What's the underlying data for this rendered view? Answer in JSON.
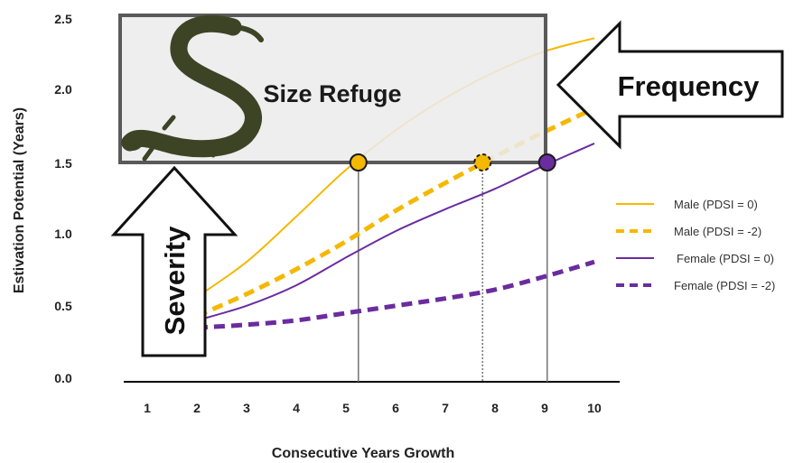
{
  "chart_data": {
    "type": "line",
    "xlabel": "Consecutive Years Growth",
    "ylabel": "Estivation Potential (Years)",
    "x_ticks": [
      "1",
      "2",
      "3",
      "4",
      "5",
      "6",
      "7",
      "8",
      "9",
      "10"
    ],
    "y_ticks": [
      "0.0",
      "0.5",
      "1.0",
      "1.5",
      "2.0",
      "2.5"
    ],
    "xlim": [
      0.6,
      10.4
    ],
    "ylim": [
      0,
      2.5
    ],
    "threshold": 1.5,
    "series": [
      {
        "name": "Male (PDSI = 0)",
        "color": "#f5b800",
        "style": "solid",
        "x": [
          2,
          3,
          4,
          5,
          6,
          7,
          8,
          9,
          10
        ],
        "y": [
          0.58,
          0.82,
          1.13,
          1.45,
          1.72,
          1.94,
          2.12,
          2.26,
          2.35
        ]
      },
      {
        "name": "Male (PDSI = -2)",
        "color": "#f5b800",
        "style": "dashed",
        "x": [
          2,
          3,
          4,
          5,
          6,
          7,
          8,
          9,
          10
        ],
        "y": [
          0.45,
          0.6,
          0.77,
          0.96,
          1.17,
          1.36,
          1.54,
          1.71,
          1.87
        ]
      },
      {
        "name": "Female (PDSI = 0)",
        "color": "#6a2c9e",
        "style": "solid",
        "x": [
          2,
          3,
          4,
          5,
          6,
          7,
          8,
          9,
          10
        ],
        "y": [
          0.42,
          0.52,
          0.66,
          0.85,
          1.03,
          1.18,
          1.32,
          1.48,
          1.63
        ]
      },
      {
        "name": "Female (PDSI = -2)",
        "color": "#6a2c9e",
        "style": "dashed",
        "x": [
          2,
          3,
          4,
          5,
          6,
          7,
          8,
          9,
          10
        ],
        "y": [
          0.37,
          0.39,
          0.42,
          0.47,
          0.52,
          0.57,
          0.63,
          0.72,
          0.82
        ]
      }
    ],
    "markers": [
      {
        "series": "Male (PDSI = 0)",
        "x": 5.25,
        "y": 1.5,
        "color": "#f5b800",
        "style": "solid"
      },
      {
        "series": "Male (PDSI = -2)",
        "x": 7.75,
        "y": 1.5,
        "color": "#f5b800",
        "style": "dashed"
      },
      {
        "series": "Female (PDSI = 0)",
        "x": 9.05,
        "y": 1.5,
        "color": "#6a2c9e",
        "style": "solid"
      }
    ],
    "annotations": {
      "size_refuge": "Size Refuge",
      "frequency": "Frequency",
      "severity": "Severity"
    },
    "legend_position": "right"
  }
}
